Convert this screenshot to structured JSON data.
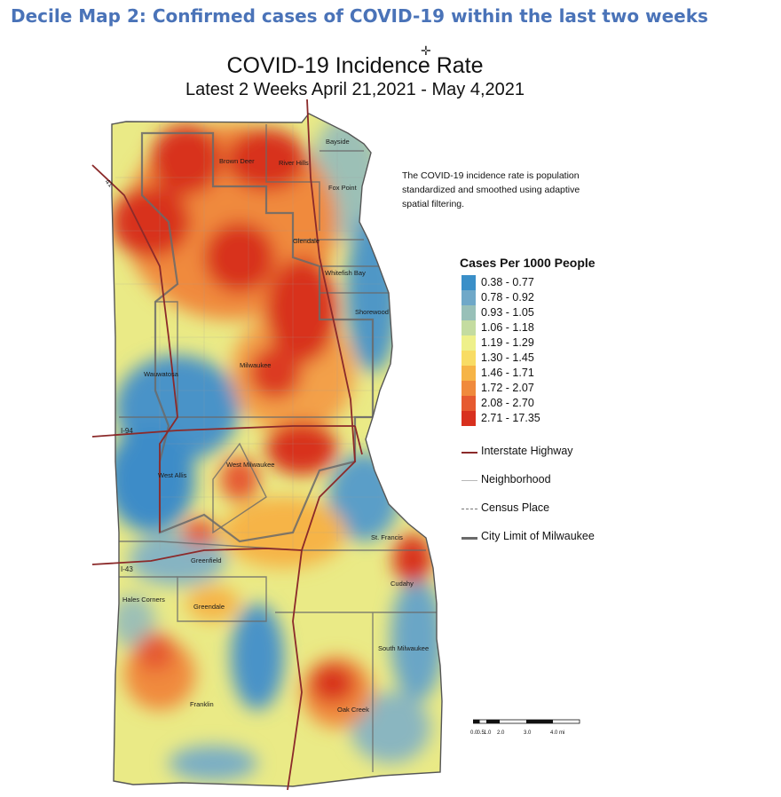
{
  "slide_title": "Decile Map 2: Confirmed cases of COVID-19 within the last two weeks",
  "map": {
    "title": "COVID-19 Incidence Rate",
    "subtitle": "Latest 2 Weeks April 21,2021 - May 4,2021",
    "note": "The COVID-19 incidence rate is population standardized and smoothed using adaptive spatial filtering.",
    "legend_title": "Cases Per 1000 People",
    "classes": [
      {
        "label": "0.38 - 0.77",
        "color": "#3a8fc8"
      },
      {
        "label": "0.78 - 0.92",
        "color": "#6fa8c8"
      },
      {
        "label": "0.93 - 1.05",
        "color": "#98c0b8"
      },
      {
        "label": "1.06 - 1.18",
        "color": "#c4dca0"
      },
      {
        "label": "1.19 - 1.29",
        "color": "#eef08a"
      },
      {
        "label": "1.30 - 1.45",
        "color": "#f8dc64"
      },
      {
        "label": "1.46 - 1.71",
        "color": "#f6b446"
      },
      {
        "label": "1.72 - 2.07",
        "color": "#f08a3c"
      },
      {
        "label": "2.08 - 2.70",
        "color": "#e65a30"
      },
      {
        "label": "2.71 - 17.35",
        "color": "#d8301e"
      }
    ],
    "line_legend": [
      {
        "label": "Interstate Highway",
        "color": "#8b2a2a"
      },
      {
        "label": "Neighborhood",
        "color": "#b8b8b8"
      },
      {
        "label": "Census Place",
        "color": "#777777"
      },
      {
        "label": "City Limit of Milwaukee",
        "color": "#6a6a6a"
      }
    ],
    "places": [
      "Bayside",
      "Brown Deer",
      "River Hills",
      "Fox Point",
      "Glendale",
      "Whitefish Bay",
      "Shorewood",
      "Milwaukee",
      "Wauwatosa",
      "West Milwaukee",
      "West Allis",
      "St. Francis",
      "Greenfield",
      "Cudahy",
      "Hales Corners",
      "Greendale",
      "South Milwaukee",
      "Franklin",
      "Oak Creek"
    ],
    "highways": [
      "41",
      "I-94",
      "I-43"
    ],
    "scale_labels": [
      "0.0",
      "0.5",
      "1.0",
      "2.0",
      "3.0",
      "4.0 mi"
    ]
  }
}
